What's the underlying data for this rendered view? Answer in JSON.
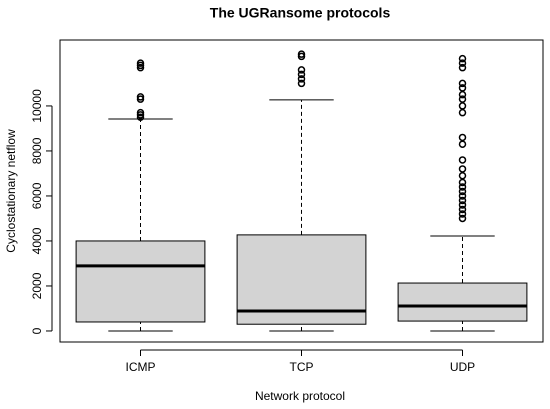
{
  "chart_data": {
    "type": "box",
    "title": "The UGRansome protocols",
    "x_label": "Network protocol",
    "y_label": "Cyclostationary netflow",
    "categories": [
      "ICMP",
      "TCP",
      "UDP"
    ],
    "color": "#d3d3d3",
    "boxes": [
      {
        "whislo": 0,
        "q1": 400,
        "med": 2890,
        "q3": 4000,
        "whishi": 9420,
        "fliers": [
          9500,
          9600,
          9700,
          10300,
          10400,
          11700,
          11800,
          11900
        ]
      },
      {
        "whislo": 0,
        "q1": 300,
        "med": 890,
        "q3": 4270,
        "whishi": 10270,
        "fliers": [
          11000,
          11200,
          11400,
          11600,
          12200,
          12300
        ]
      },
      {
        "whislo": 0,
        "q1": 440,
        "med": 1110,
        "q3": 2130,
        "whishi": 4220,
        "fliers": [
          5000,
          5200,
          5400,
          5600,
          5800,
          6000,
          6200,
          6400,
          6600,
          6900,
          7200,
          7600,
          8300,
          8600,
          9700,
          10000,
          10300,
          10500,
          10800,
          11000,
          11700,
          11900,
          12100
        ]
      }
    ],
    "ylim": [
      -490,
      12930
    ],
    "yticks": [
      0,
      2000,
      4000,
      6000,
      8000,
      10000
    ],
    "grid": false
  }
}
